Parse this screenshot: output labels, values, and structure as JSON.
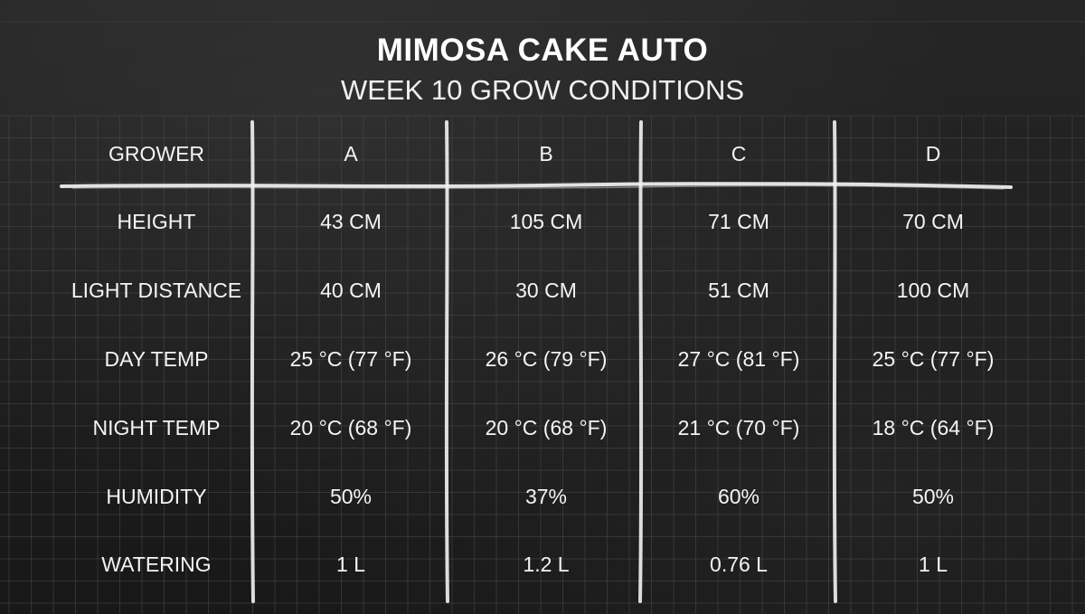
{
  "title": "MIMOSA CAKE AUTO",
  "subtitle": "WEEK 10 GROW CONDITIONS",
  "table": {
    "header": [
      "GROWER",
      "A",
      "B",
      "C",
      "D"
    ],
    "rows": [
      [
        "HEIGHT",
        "43 CM",
        "105 CM",
        "71 CM",
        "70 CM"
      ],
      [
        "LIGHT DISTANCE",
        "40 CM",
        "30 CM",
        "51 CM",
        "100 CM"
      ],
      [
        "DAY TEMP",
        "25 °C (77 °F)",
        "26 °C (79 °F)",
        "27 °C (81 °F)",
        "25 °C (77 °F)"
      ],
      [
        "NIGHT TEMP",
        "20 °C (68 °F)",
        "20 °C (68 °F)",
        "21 °C (70 °F)",
        "18 °C (64 °F)"
      ],
      [
        "HUMIDITY",
        "50%",
        "37%",
        "60%",
        "50%"
      ],
      [
        "WATERING",
        "1 L",
        "1.2 L",
        "0.76 L",
        "1 L"
      ]
    ]
  },
  "colors": {
    "background": "#1d1d1d",
    "grid": "#4a4a4a",
    "chalk": "#f4f4f4"
  }
}
